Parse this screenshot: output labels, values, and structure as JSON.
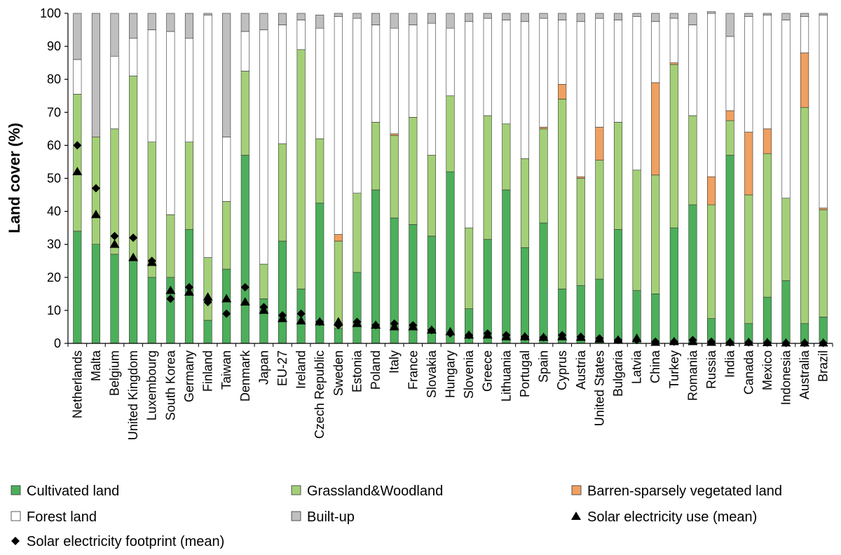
{
  "chart_data": {
    "type": "bar",
    "stacked": true,
    "ylabel": "Land cover (%)",
    "xlabel": "",
    "ylim": [
      0,
      100
    ],
    "yticks": [
      0,
      10,
      20,
      30,
      40,
      50,
      60,
      70,
      80,
      90,
      100
    ],
    "grid": false,
    "legend_position": "bottom",
    "categories": [
      "Netherlands",
      "Malta",
      "Belgium",
      "United Kingdom",
      "Luxembourg",
      "South Korea",
      "Germany",
      "Finland",
      "Taiwan",
      "Denmark",
      "Japan",
      "EU-27",
      "Ireland",
      "Czech Republic",
      "Sweden",
      "Estonia",
      "Poland",
      "Italy",
      "France",
      "Slovakia",
      "Hungary",
      "Slovenia",
      "Greece",
      "Lithuania",
      "Portugal",
      "Spain",
      "Cyprus",
      "Austria",
      "United States",
      "Bulgaria",
      "Latvia",
      "China",
      "Turkey",
      "Romania",
      "Russia",
      "India",
      "Canada",
      "Mexico",
      "Indonesia",
      "Australia",
      "Brazil"
    ],
    "series": [
      {
        "name": "Cultivated land",
        "kind": "bar",
        "color": "#4caf5a",
        "values": [
          34,
          30,
          27,
          25,
          20,
          20,
          34.5,
          7,
          22.5,
          57,
          13.5,
          31,
          16.5,
          42.5,
          4.5,
          21.5,
          46.5,
          38,
          36,
          32.5,
          52,
          10.5,
          31.5,
          46.5,
          29,
          36.5,
          16.5,
          17.5,
          19.5,
          34.5,
          16,
          15,
          35,
          42,
          7.5,
          57,
          6,
          14,
          19,
          6,
          8
        ]
      },
      {
        "name": "Grassland&Woodland",
        "kind": "bar",
        "color": "#a3d077",
        "values": [
          41.5,
          32.5,
          38,
          56,
          41,
          19,
          26.5,
          19,
          20.5,
          25.5,
          10.5,
          29.5,
          72.5,
          19.5,
          26.5,
          24,
          20.5,
          25,
          32.5,
          24.5,
          23,
          24.5,
          37.5,
          20,
          27,
          28.5,
          57.5,
          32.5,
          36,
          32.5,
          36.5,
          36,
          49.5,
          27,
          34.5,
          10.5,
          39,
          43.5,
          25,
          65.5,
          32.5
        ]
      },
      {
        "name": "Barren-sparsely vegetated land",
        "kind": "bar",
        "color": "#f0a060",
        "values": [
          0,
          0,
          0,
          0,
          0,
          0,
          0,
          0,
          0,
          0,
          0,
          0,
          0,
          0,
          2,
          0,
          0,
          0.5,
          0,
          0,
          0,
          0,
          0,
          0,
          0,
          0.5,
          4.5,
          0.5,
          10,
          0,
          0,
          28,
          0.5,
          0,
          8.5,
          3,
          19,
          7.5,
          0,
          16.5,
          0.5
        ]
      },
      {
        "name": "Forest land",
        "kind": "bar",
        "color": "#ffffff",
        "values": [
          10.5,
          0,
          22,
          11.5,
          34,
          55.5,
          31.5,
          73.5,
          19.5,
          12,
          71,
          36,
          9,
          33.5,
          66,
          53,
          29.5,
          32,
          28,
          40,
          20.5,
          62.5,
          29.5,
          31.5,
          41.5,
          33,
          19.5,
          47,
          33,
          31,
          46.5,
          18.5,
          13.5,
          27.5,
          49.5,
          22.5,
          35,
          34.5,
          54,
          11,
          58.5
        ]
      },
      {
        "name": "Built-up",
        "kind": "bar",
        "color": "#bfbfbf",
        "values": [
          14,
          37.5,
          13,
          7.5,
          5,
          5.5,
          7.5,
          0.5,
          37.5,
          5.5,
          5,
          3.5,
          2,
          4,
          1,
          1.5,
          3.5,
          4.5,
          3.5,
          3,
          4.5,
          2.5,
          1.5,
          2,
          2.5,
          1.5,
          2,
          2.5,
          1.5,
          2,
          1,
          2.5,
          1.5,
          3.5,
          0.5,
          7,
          1,
          0.5,
          2,
          1,
          0.5
        ]
      },
      {
        "name": "Solar electricity use (mean)",
        "kind": "marker",
        "marker": "triangle",
        "color": "#000000",
        "values": [
          52,
          39,
          30,
          26,
          24.5,
          16,
          15.5,
          14,
          13.5,
          12.5,
          10,
          7.5,
          6.8,
          6.5,
          6.5,
          6,
          5.5,
          5,
          5,
          4,
          3.5,
          2.5,
          2.5,
          2,
          2,
          1.8,
          2,
          1.8,
          1.3,
          1,
          1.5,
          0.3,
          0.5,
          0.5,
          0.3,
          0.3,
          0.3,
          0.2,
          0.1,
          0.1,
          0.1
        ]
      },
      {
        "name": "Solar electricity footprint (mean)",
        "kind": "marker",
        "marker": "diamond",
        "color": "#000000",
        "values": [
          60,
          47,
          32.5,
          32,
          25,
          13.5,
          17,
          12.5,
          9,
          17,
          11,
          8.5,
          9,
          6.5,
          5.5,
          6.5,
          5.5,
          6,
          5.5,
          4,
          3,
          2.5,
          3,
          2.5,
          2,
          1.8,
          2.5,
          2,
          1.5,
          1,
          1,
          0.5,
          0.5,
          1,
          0.5,
          0.3,
          0.3,
          0.2,
          0.1,
          0.1,
          0.1
        ]
      }
    ]
  }
}
